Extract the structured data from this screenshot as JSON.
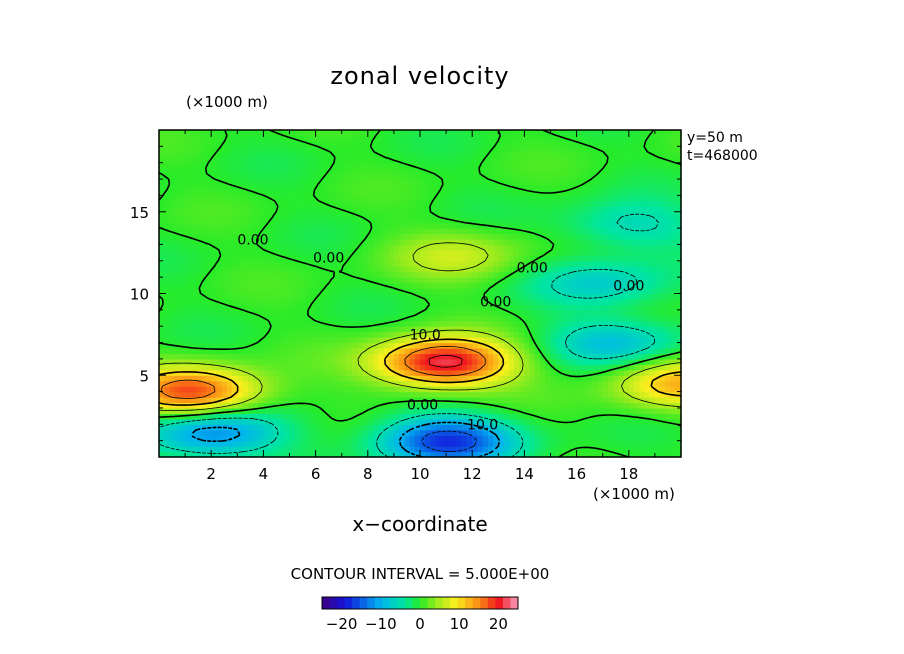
{
  "chart_data": {
    "type": "heatmap",
    "title": "zonal velocity",
    "xlabel": "x−coordinate",
    "x_unit": "(×1000 m)",
    "y_unit": "(×1000 m)",
    "info": [
      "y=50  m",
      "t=468000"
    ],
    "xlim": [
      0,
      20
    ],
    "ylim": [
      0,
      20
    ],
    "x_ticks": [
      2,
      4,
      6,
      8,
      10,
      12,
      14,
      16,
      18
    ],
    "y_ticks": [
      5,
      10,
      15
    ],
    "contour_interval_text": "CONTOUR INTERVAL = 5.000E+00",
    "contour_interval": 5,
    "colorbar": {
      "min": -25,
      "max": 25,
      "tick_values": [
        -20,
        -10,
        0,
        10,
        20
      ],
      "tick_labels": [
        "−20",
        "−10",
        "0",
        "10",
        "20"
      ]
    },
    "contour_labels": [
      {
        "text": "0.00",
        "x": 3.6,
        "y": 13.3
      },
      {
        "text": "0.00",
        "x": 6.5,
        "y": 12.2
      },
      {
        "text": "0.00",
        "x": 14.3,
        "y": 11.6
      },
      {
        "text": "0.00",
        "x": 18.0,
        "y": 10.5
      },
      {
        "text": "0.00",
        "x": 12.9,
        "y": 9.5
      },
      {
        "text": "10.0",
        "x": 10.2,
        "y": 7.5
      },
      {
        "text": "0.00",
        "x": 10.1,
        "y": 3.2
      },
      {
        "text": "10.0",
        "x": 12.4,
        "y": 2.0
      }
    ],
    "features": [
      {
        "kind": "max",
        "x": 10.9,
        "y": 5.8,
        "value": 22
      },
      {
        "kind": "max",
        "x": 1.3,
        "y": 4.0,
        "value": 18
      },
      {
        "kind": "max",
        "x": 20.0,
        "y": 4.5,
        "value": 12
      },
      {
        "kind": "min",
        "x": 11.0,
        "y": 1.0,
        "value": -17
      },
      {
        "kind": "min",
        "x": 2.0,
        "y": 1.5,
        "value": -13
      },
      {
        "kind": "min",
        "x": 17.5,
        "y": 7.0,
        "value": -8
      },
      {
        "kind": "min",
        "x": 17.0,
        "y": 10.6,
        "value": -7
      },
      {
        "kind": "min",
        "x": 18.0,
        "y": 14.2,
        "value": -6
      },
      {
        "kind": "max",
        "x": 11.5,
        "y": 12.3,
        "value": 6
      }
    ]
  }
}
